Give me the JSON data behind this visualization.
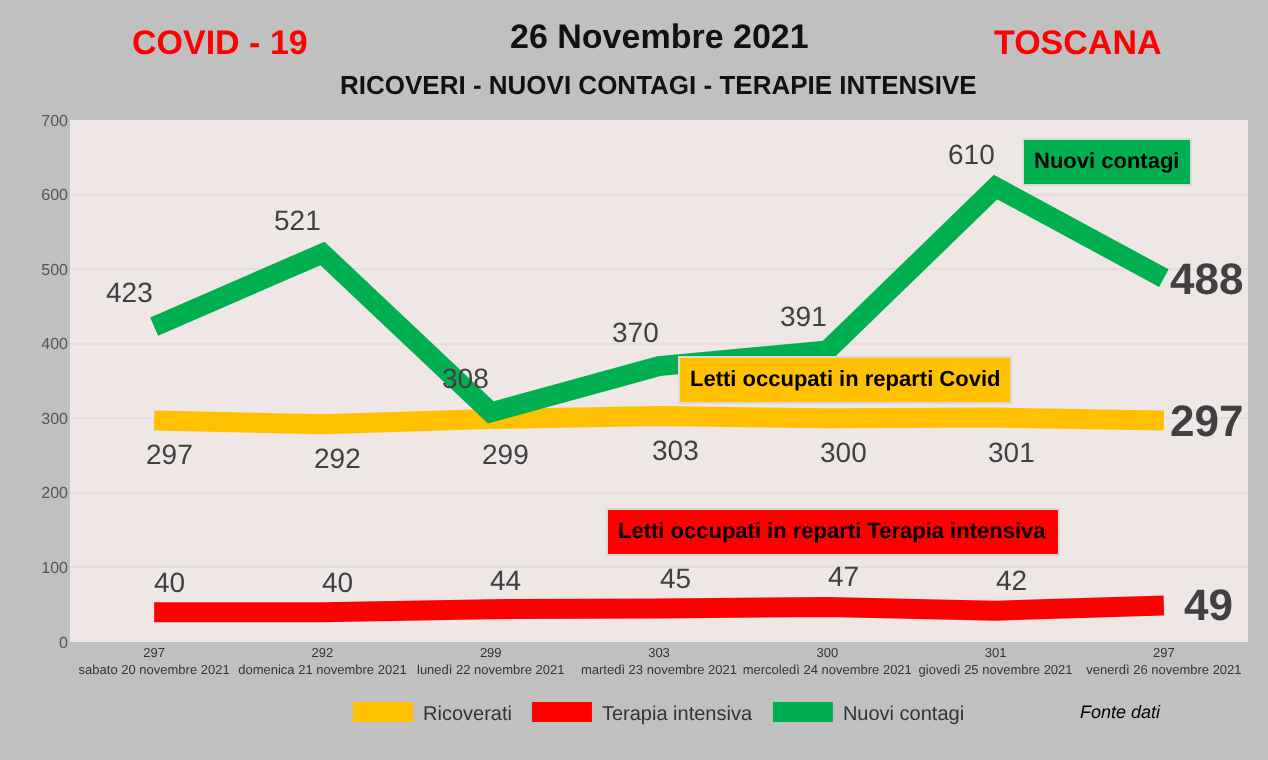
{
  "chart_data": {
    "type": "line",
    "title": "26 Novembre 2021",
    "subtitle": "RICOVERI - NUOVI CONTAGI - TERAPIE INTENSIVE",
    "categories": [
      "297\nsabato 20 novembre 2021",
      "292\ndomenica 21 novembre 2021",
      "299\nlunedì 22 novembre 2021",
      "303\nmartedì 23 novembre 2021",
      "300\nmercoledì 24 novembre 2021",
      "301\ngiovedì 25 novembre 2021",
      "297\nvenerdì 26 novembre 2021"
    ],
    "series": [
      {
        "name": "Ricoverati",
        "color": "#ffc000",
        "values": [
          297,
          292,
          299,
          303,
          300,
          301,
          297
        ]
      },
      {
        "name": "Terapia intensiva",
        "color": "#ff0000",
        "values": [
          40,
          40,
          44,
          45,
          47,
          42,
          49
        ]
      },
      {
        "name": "Nuovi contagi",
        "color": "#00b050",
        "values": [
          423,
          521,
          308,
          370,
          391,
          610,
          488
        ]
      }
    ],
    "ylim": [
      0,
      700
    ],
    "yticks": [
      0,
      100,
      200,
      300,
      400,
      500,
      600,
      700
    ],
    "grid": "y",
    "legend": "bottom",
    "data_labels": true,
    "marker": "none",
    "line_style": "solid",
    "annotations": [
      "COVID - 19",
      "TOSCANA",
      "Nuovi contagi",
      "Letti occupati in reparti Covid",
      "Letti occupati in reparti Terapia intensiva",
      "Fonte dati"
    ]
  }
}
